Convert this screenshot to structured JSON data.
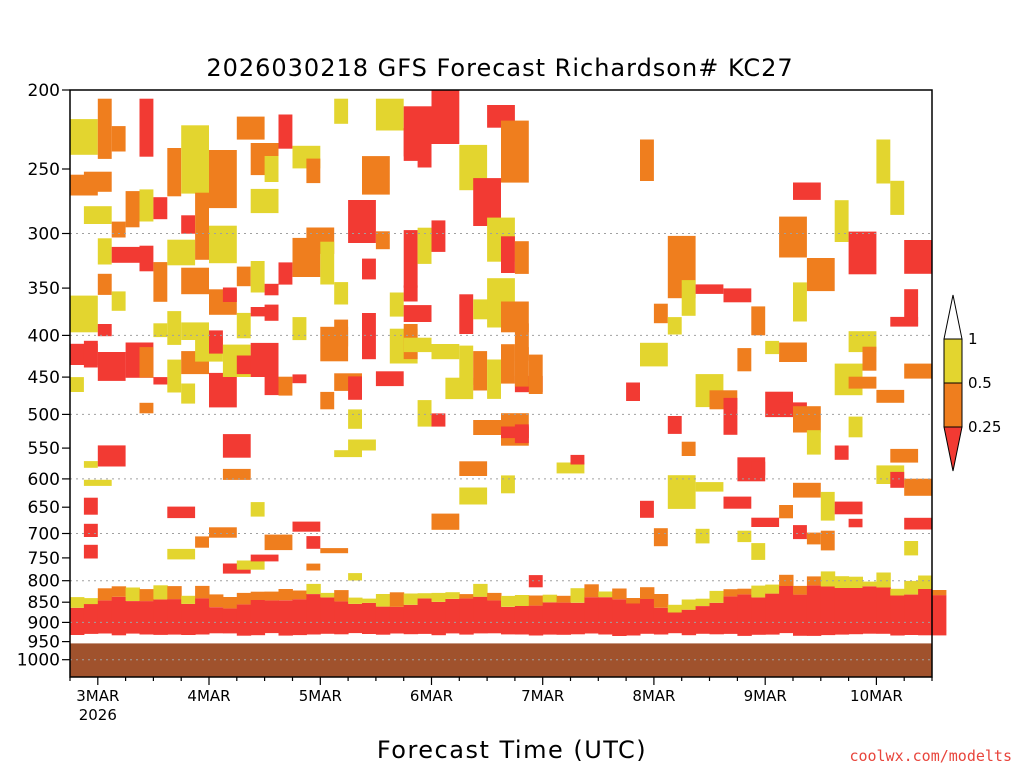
{
  "chart_data": {
    "type": "heatmap",
    "title": "2026030218 GFS Forecast Richardson# KC27",
    "xlabel": "Forecast Time (UTC)",
    "ylabel": "",
    "y_axis": {
      "scale": "log-pressure",
      "inverted": true,
      "range_hPa": [
        200,
        1050
      ],
      "ticks": [
        200,
        250,
        300,
        350,
        400,
        450,
        500,
        550,
        600,
        650,
        700,
        750,
        800,
        850,
        900,
        950,
        1000
      ],
      "gridlines_at": [
        300,
        400,
        500,
        600,
        700,
        800,
        900,
        1000
      ]
    },
    "x_axis": {
      "start": "2026-03-02T18Z",
      "end": "2026-03-10T12Z",
      "ticks": [
        {
          "at": "2026-03-03T00Z",
          "label": "3MAR",
          "sublabel": "2026"
        },
        {
          "at": "2026-03-04T00Z",
          "label": "4MAR"
        },
        {
          "at": "2026-03-05T00Z",
          "label": "5MAR"
        },
        {
          "at": "2026-03-06T00Z",
          "label": "6MAR"
        },
        {
          "at": "2026-03-07T00Z",
          "label": "7MAR"
        },
        {
          "at": "2026-03-08T00Z",
          "label": "8MAR"
        },
        {
          "at": "2026-03-09T00Z",
          "label": "9MAR"
        },
        {
          "at": "2026-03-10T00Z",
          "label": "10MAR"
        }
      ]
    },
    "legend": {
      "placement": "right",
      "bins": [
        {
          "label": "1",
          "color": "#ffffff",
          "range": ">1"
        },
        {
          "label": "0.5",
          "color": "#e3d52f",
          "range": "0.5-1"
        },
        {
          "label": "0.25",
          "color": "#ef7e1e",
          "range": "0.25-0.5"
        },
        {
          "label": "",
          "color": "#f23a33",
          "range": "<0.25"
        }
      ]
    },
    "colors": {
      "low_ri": "#f23a33",
      "mid_ri": "#ef7e1e",
      "high_ri": "#e3d52f",
      "ground": "#a0522d",
      "gridline": "#a0a0a0"
    },
    "notable_regions": [
      {
        "desc": "Boundary layer low Ri band",
        "hPa": [
          840,
          930
        ],
        "time": [
          "2026-03-02T18Z",
          "2026-03-10T12Z"
        ],
        "value": "<0.25"
      },
      {
        "desc": "Upper level turbulent layers",
        "hPa": [
          220,
          450
        ],
        "time": [
          "2026-03-02T18Z",
          "2026-03-06T18Z"
        ],
        "value": "mixed"
      },
      {
        "desc": "Upper layers late period",
        "hPa": [
          230,
          650
        ],
        "time": [
          "2026-03-08T00Z",
          "2026-03-10T06Z"
        ],
        "value": "mixed"
      }
    ],
    "grid": true
  },
  "credit": "coolwx.com/modelts"
}
